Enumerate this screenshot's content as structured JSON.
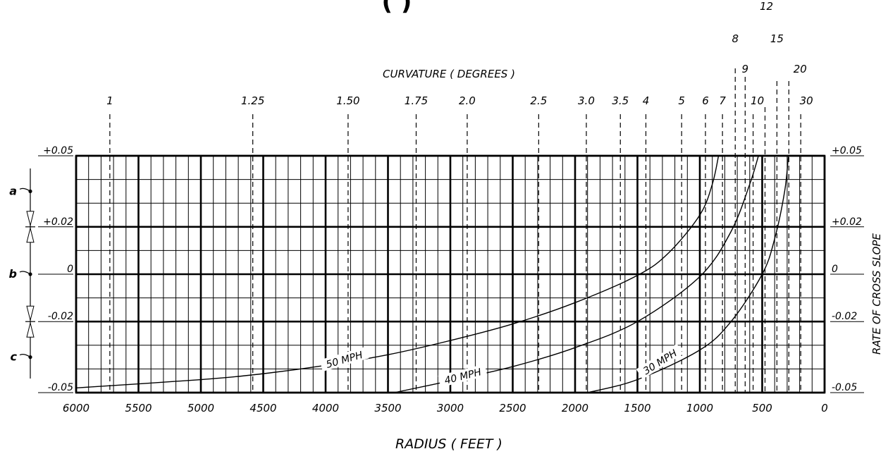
{
  "page": {
    "title_fragment": "( )"
  },
  "chart_data": {
    "type": "line",
    "top_axis_title": "CURVATURE ( DEGREES )",
    "xlabel": "RADIUS ( FEET )",
    "ylabel": "RATE OF CROSS SLOPE",
    "xlim": [
      6000,
      0
    ],
    "ylim": [
      -0.05,
      0.05
    ],
    "grid": true,
    "x_tick_labels": [
      "6000",
      "5500",
      "5000",
      "4500",
      "4000",
      "3500",
      "3000",
      "2500",
      "2000",
      "1500",
      "1000",
      "500",
      "0"
    ],
    "y_tick_labels_left": [
      "+0.05",
      "+0.02",
      "0",
      "-0.02",
      "-0.05"
    ],
    "y_tick_labels_right": [
      "+0.05",
      "+0.02",
      "0",
      "-0.02",
      "-0.05"
    ],
    "y_tick_values": [
      0.05,
      0.02,
      0,
      -0.02,
      -0.05
    ],
    "side_markers": [
      {
        "label": "a",
        "y": 0.035
      },
      {
        "label": "b",
        "y": 0.0
      },
      {
        "label": "c",
        "y": -0.035
      }
    ],
    "curvature_ticks": [
      {
        "label": "1",
        "deg": 1
      },
      {
        "label": "1.25",
        "deg": 1.25
      },
      {
        "label": "1.50",
        "deg": 1.5
      },
      {
        "label": "1.75",
        "deg": 1.75
      },
      {
        "label": "2.0",
        "deg": 2.0
      },
      {
        "label": "2.5",
        "deg": 2.5
      },
      {
        "label": "3.0",
        "deg": 3.0
      },
      {
        "label": "3.5",
        "deg": 3.5
      },
      {
        "label": "4",
        "deg": 4
      },
      {
        "label": "5",
        "deg": 5
      },
      {
        "label": "6",
        "deg": 6
      },
      {
        "label": "7",
        "deg": 7
      },
      {
        "label": "8",
        "deg": 8
      },
      {
        "label": "9",
        "deg": 9
      },
      {
        "label": "10",
        "deg": 10
      },
      {
        "label": "12",
        "deg": 12
      },
      {
        "label": "15",
        "deg": 15
      },
      {
        "label": "20",
        "deg": 20
      },
      {
        "label": "30",
        "deg": 30
      }
    ],
    "series": [
      {
        "name": "50 MPH",
        "points": [
          [
            6000,
            -0.048
          ],
          [
            5000,
            -0.0445
          ],
          [
            4500,
            -0.042
          ],
          [
            4000,
            -0.0385
          ],
          [
            3500,
            -0.034
          ],
          [
            3000,
            -0.028
          ],
          [
            2500,
            -0.021
          ],
          [
            2000,
            -0.012
          ],
          [
            1500,
            -0.0005
          ],
          [
            1250,
            0.009
          ],
          [
            1000,
            0.025
          ],
          [
            900,
            0.038
          ],
          [
            850,
            0.05
          ]
        ]
      },
      {
        "name": "40 MPH",
        "points": [
          [
            3450,
            -0.05
          ],
          [
            3000,
            -0.045
          ],
          [
            2500,
            -0.039
          ],
          [
            2000,
            -0.031
          ],
          [
            1500,
            -0.02
          ],
          [
            1000,
            -0.001
          ],
          [
            750,
            0.018
          ],
          [
            600,
            0.038
          ],
          [
            530,
            0.05
          ]
        ]
      },
      {
        "name": "30 MPH",
        "points": [
          [
            1900,
            -0.05
          ],
          [
            1500,
            -0.0445
          ],
          [
            1000,
            -0.032
          ],
          [
            750,
            -0.02
          ],
          [
            500,
            0.0
          ],
          [
            400,
            0.015
          ],
          [
            320,
            0.035
          ],
          [
            290,
            0.05
          ]
        ]
      }
    ]
  }
}
